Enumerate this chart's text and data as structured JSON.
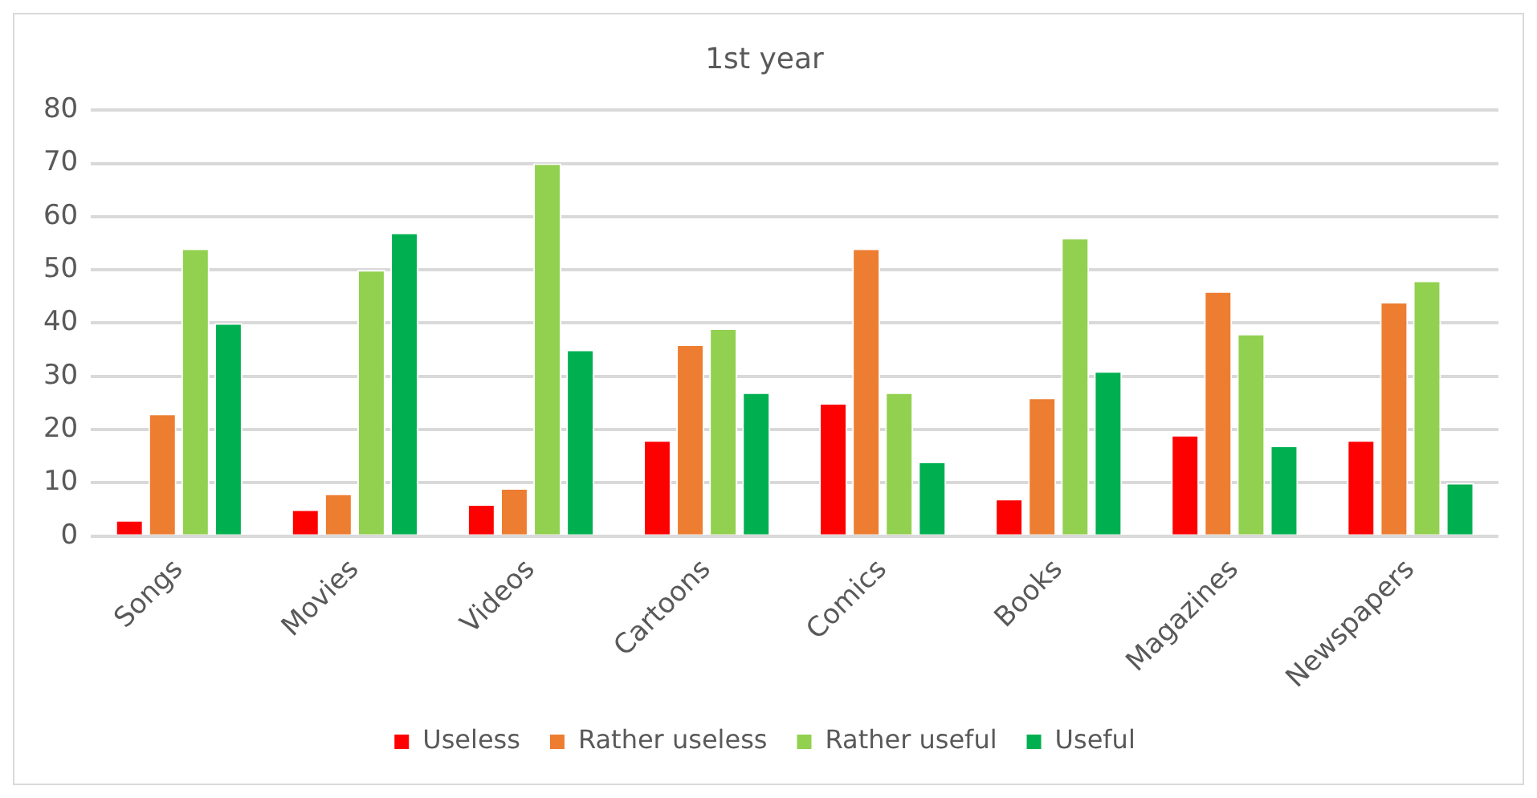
{
  "chart_data": {
    "type": "bar",
    "title": "1st year",
    "categories": [
      "Songs",
      "Movies",
      "Videos",
      "Cartoons",
      "Comics",
      "Books",
      "Magazines",
      "Newspapers"
    ],
    "series": [
      {
        "name": "Useless",
        "color": "#ff0000",
        "values": [
          3,
          5,
          6,
          18,
          25,
          7,
          19,
          18
        ]
      },
      {
        "name": "Rather useless",
        "color": "#ed7d31",
        "values": [
          23,
          8,
          9,
          36,
          54,
          26,
          46,
          44
        ]
      },
      {
        "name": "Rather useful",
        "color": "#92d050",
        "values": [
          54,
          50,
          70,
          39,
          27,
          56,
          38,
          48
        ]
      },
      {
        "name": "Useful",
        "color": "#00b050",
        "values": [
          40,
          57,
          35,
          27,
          14,
          31,
          17,
          10
        ]
      }
    ],
    "ylim": [
      0,
      80
    ],
    "yticks": [
      0,
      10,
      20,
      30,
      40,
      50,
      60,
      70,
      80
    ],
    "grid": "y",
    "legend": "bottom"
  }
}
